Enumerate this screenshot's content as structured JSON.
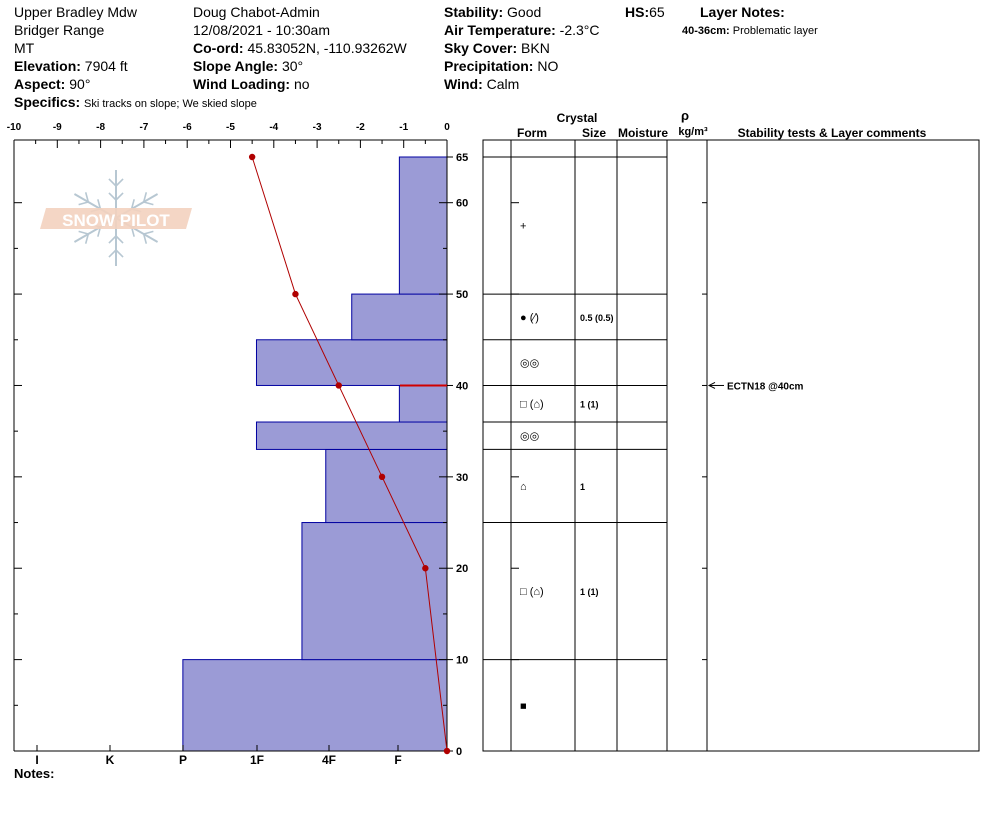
{
  "site": {
    "location": "Upper Bradley Mdw",
    "range": "Bridger Range",
    "state": "MT",
    "elevation_label": "Elevation:",
    "elevation": "7904 ft",
    "aspect_label": "Aspect:",
    "aspect": "90°",
    "specifics_label": "Specifics:",
    "specifics": "Ski tracks on slope; We skied slope"
  },
  "observer": {
    "name": "Doug Chabot-Admin",
    "datetime": "12/08/2021 - 10:30am",
    "coord_label": "Co-ord:",
    "coord": "45.83052N, -110.93262W",
    "slope_label": "Slope Angle:",
    "slope": "30°",
    "wind_loading_label": "Wind Loading:",
    "wind_loading": "no"
  },
  "conditions": {
    "stability_label": "Stability:",
    "stability": "Good",
    "air_temp_label": "Air Temperature:",
    "air_temp": "-2.3°C",
    "sky_label": "Sky Cover:",
    "sky": "BKN",
    "precip_label": "Precipitation:",
    "precip": "NO",
    "wind_label": "Wind:",
    "wind": "Calm",
    "hs_label": "HS:",
    "hs": "65"
  },
  "layer_notes": {
    "title": "Layer Notes:",
    "items": [
      {
        "range": "40-36cm:",
        "text": "Problematic layer"
      }
    ]
  },
  "logo_text": "SNOW PILOT",
  "notes_label": "Notes:",
  "chart_data": {
    "type": "snow_profile",
    "temp_axis": {
      "ticks": [
        "-10",
        "-9",
        "-8",
        "-7",
        "-6",
        "-5",
        "-4",
        "-3",
        "-2",
        "-1",
        "0"
      ],
      "range": [
        -10,
        0
      ]
    },
    "height_axis": {
      "range": [
        0,
        65
      ],
      "ticks": [
        "0",
        "10",
        "20",
        "30",
        "40",
        "50",
        "60",
        "65"
      ]
    },
    "hardness_axis": {
      "ticks": [
        "I",
        "K",
        "P",
        "1F",
        "4F",
        "F"
      ]
    },
    "hardness_layers": [
      {
        "bottom": 0,
        "top": 10,
        "hardness": -6.1
      },
      {
        "bottom": 10,
        "top": 25,
        "hardness": -3.35
      },
      {
        "bottom": 25,
        "top": 33,
        "hardness": -2.8
      },
      {
        "bottom": 33,
        "top": 36,
        "hardness": -4.4
      },
      {
        "bottom": 36,
        "top": 40,
        "hardness": -1.1
      },
      {
        "bottom": 40,
        "top": 45,
        "hardness": -4.4
      },
      {
        "bottom": 45,
        "top": 50,
        "hardness": -2.2
      },
      {
        "bottom": 50,
        "top": 65,
        "hardness": -1.1
      }
    ],
    "temperature_profile": [
      {
        "height": 0,
        "temp": 0
      },
      {
        "height": 20,
        "temp": -0.5
      },
      {
        "height": 30,
        "temp": -1.5
      },
      {
        "height": 40,
        "temp": -2.5
      },
      {
        "height": 50,
        "temp": -3.5
      },
      {
        "height": 65,
        "temp": -4.5
      }
    ],
    "columns": {
      "crystal": "Crystal",
      "form": "Form",
      "size": "Size",
      "moisture": "Moisture",
      "rho": "ρ",
      "density_unit": "kg/m³",
      "stability_comments": "Stability tests & Layer comments"
    },
    "layer_rows": [
      {
        "bottom": 0,
        "top": 10,
        "form": "■",
        "size": ""
      },
      {
        "bottom": 10,
        "top": 25,
        "form": "□ (⌂)",
        "size": "1 (1)"
      },
      {
        "bottom": 25,
        "top": 33,
        "form": "⌂",
        "size": "1"
      },
      {
        "bottom": 33,
        "top": 36,
        "form": "◎◎",
        "size": ""
      },
      {
        "bottom": 36,
        "top": 40,
        "form": "□ (⌂)",
        "size": "1 (1)"
      },
      {
        "bottom": 40,
        "top": 45,
        "form": "◎◎",
        "size": ""
      },
      {
        "bottom": 45,
        "top": 50,
        "form": "● (⁄)",
        "size": "0.5 (0.5)"
      },
      {
        "bottom": 50,
        "top": 65,
        "form": "+",
        "size": ""
      }
    ],
    "stability_tests": [
      {
        "height": 40,
        "label": "ECTN18 @40cm"
      }
    ],
    "colors": {
      "hardness_fill": "#9b9bd6",
      "hardness_stroke": "#0000a0",
      "temp_line": "#b00000"
    }
  }
}
